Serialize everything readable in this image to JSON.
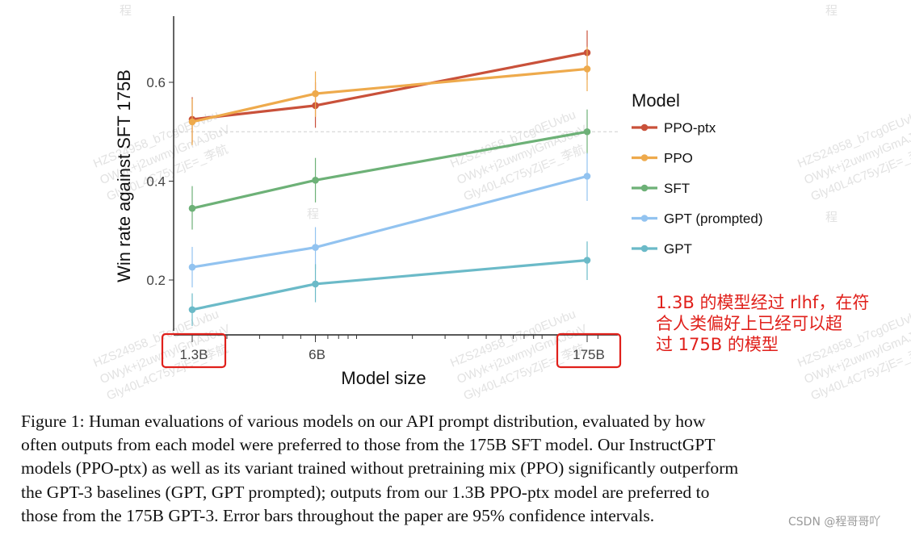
{
  "chart_data": {
    "type": "line",
    "title": "",
    "xlabel": "Model size",
    "ylabel": "Win rate against SFT 175B",
    "x_scale": "log",
    "categories": [
      "1.3B",
      "6B",
      "175B"
    ],
    "x_values": [
      1.3,
      6,
      175
    ],
    "yticks": [
      0.2,
      0.4,
      0.6
    ],
    "ylim": [
      0.11,
      0.74
    ],
    "reference_line": 0.5,
    "legend_title": "Model",
    "series": [
      {
        "name": "PPO-ptx",
        "color": "#c9513a",
        "values": [
          0.525,
          0.553,
          0.66
        ],
        "err_low": [
          0.478,
          0.508,
          0.605
        ],
        "err_high": [
          0.57,
          0.6,
          0.705
        ]
      },
      {
        "name": "PPO",
        "color": "#eeaa4c",
        "values": [
          0.52,
          0.577,
          0.627
        ],
        "err_low": [
          0.473,
          0.53,
          0.582
        ],
        "err_high": [
          0.567,
          0.622,
          0.672
        ]
      },
      {
        "name": "SFT",
        "color": "#6db177",
        "values": [
          0.345,
          0.402,
          0.5
        ],
        "err_low": [
          0.302,
          0.357,
          0.455
        ],
        "err_high": [
          0.39,
          0.447,
          0.545
        ]
      },
      {
        "name": "GPT (prompted)",
        "color": "#92c3f0",
        "values": [
          0.226,
          0.266,
          0.41
        ],
        "err_low": [
          0.185,
          0.222,
          0.36
        ],
        "err_high": [
          0.267,
          0.307,
          0.457
        ]
      },
      {
        "name": "GPT",
        "color": "#6bbac8",
        "values": [
          0.14,
          0.192,
          0.24
        ],
        "err_low": [
          0.107,
          0.155,
          0.2
        ],
        "err_high": [
          0.173,
          0.232,
          0.278
        ]
      }
    ],
    "highlight_color": "#e0201b",
    "highlighted_ticks": [
      "1.3B",
      "175B"
    ]
  },
  "annotation": {
    "lines": [
      "1.3B 的模型经过 rlhf，在符",
      "合人类偏好上已经可以超",
      "过 175B 的模型"
    ]
  },
  "caption": {
    "lines": [
      "Figure 1: Human evaluations of various models on our API prompt distribution, evaluated by how",
      "often outputs from each model were preferred to those from the 175B SFT model. Our InstructGPT",
      "models (PPO-ptx) as well as its variant trained without pretraining mix (PPO) significantly outperform",
      "the GPT-3 baselines (GPT, GPT prompted); outputs from our 1.3B PPO-ptx model are preferred to",
      "those from the 175B GPT-3. Error bars throughout the paper are 95% confidence intervals."
    ]
  },
  "watermark": {
    "lines": [
      "HZS24958_b7cg0EUvbu",
      "OWyk+j2uwmylGmAJ6uV",
      "Gly40L4C75yZjE=_李航"
    ],
    "glyph": "程"
  },
  "csdn_tag": "CSDN @程哥哥吖"
}
